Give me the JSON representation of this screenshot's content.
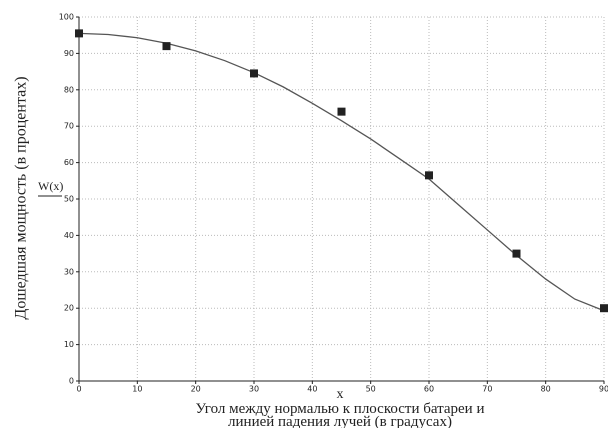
{
  "chart_data": {
    "type": "scatter",
    "y_axis_title": "Дошедшая мощность (в процентах)",
    "y_var_label": "W(x)",
    "x_var_label": "x",
    "x_axis_title": [
      "Угол между нормалью к плоскости батареи и",
      "линией падения лучей (в градусах)"
    ],
    "x": [
      0,
      15,
      30,
      45,
      60,
      75,
      90
    ],
    "values": [
      95.5,
      92,
      84.5,
      74,
      56.5,
      35,
      20
    ],
    "color": "#222222",
    "curve": {
      "x": [
        0,
        5,
        10,
        15,
        20,
        25,
        30,
        35,
        40,
        45,
        50,
        55,
        60,
        65,
        70,
        75,
        80,
        85,
        90
      ],
      "values": [
        95.5,
        95.2,
        94.3,
        92.8,
        90.7,
        88,
        84.7,
        80.8,
        76.3,
        71.5,
        66.5,
        61,
        55.5,
        48.5,
        41.5,
        34.5,
        28,
        22.5,
        19.3
      ],
      "color": "#555555"
    },
    "xlim": [
      0,
      90
    ],
    "xticks": [
      0,
      10,
      20,
      30,
      40,
      50,
      60,
      70,
      80,
      90
    ],
    "ylim": [
      0,
      100
    ],
    "yticks": [
      0,
      10,
      20,
      30,
      40,
      50,
      60,
      70,
      80,
      90,
      100
    ],
    "grid": true
  }
}
